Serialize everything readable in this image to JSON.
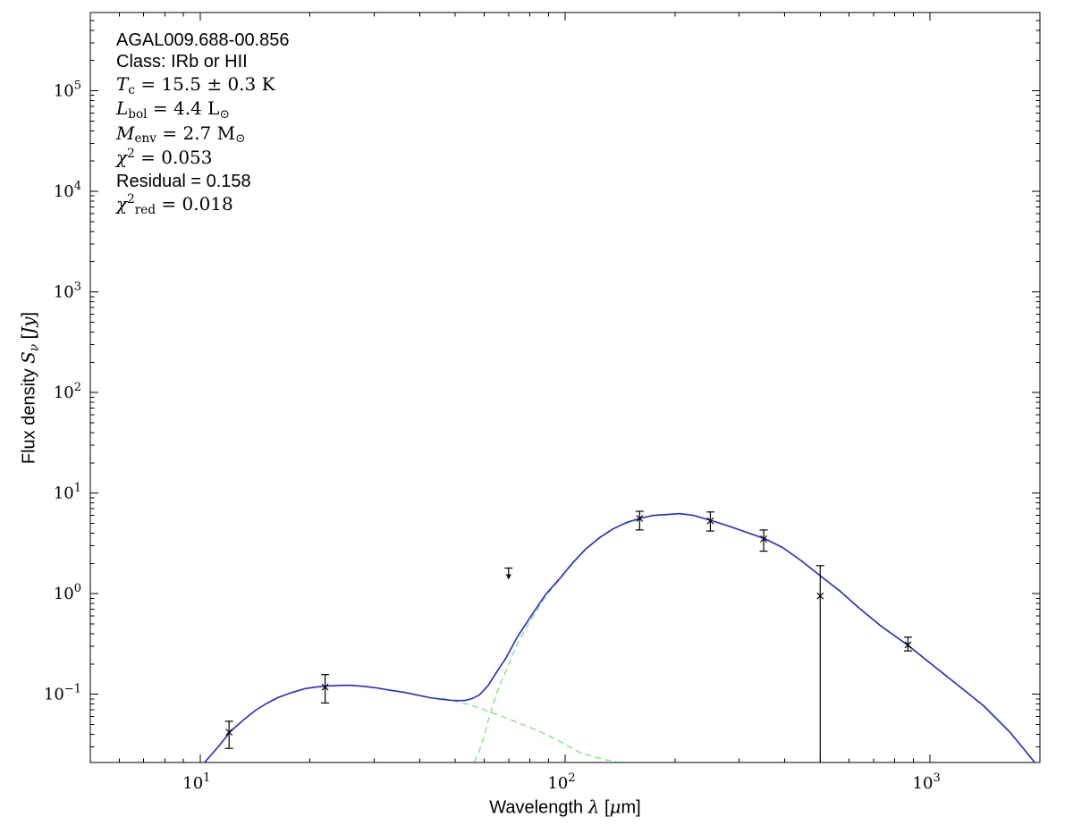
{
  "figure": {
    "background": "#ffffff",
    "frame_color": "#000000",
    "text_color": "#000000"
  },
  "chart_data": {
    "type": "line",
    "title": "",
    "x_scale": "log",
    "y_scale": "log",
    "xlim": [
      5.0,
      2000
    ],
    "ylim": [
      0.021,
      600000
    ],
    "grid": "off",
    "legend": "none",
    "x_ticks": {
      "values": [
        10,
        100,
        1000
      ],
      "exponents": [
        "1",
        "2",
        "3"
      ]
    },
    "y_ticks": {
      "values": [
        100000,
        10000,
        1000,
        100,
        10,
        1,
        0.1
      ],
      "exponents": [
        "5",
        "4",
        "3",
        "2",
        "1",
        "0",
        "−1"
      ]
    },
    "xlabel_segments": [
      {
        "t": "Wavelength ",
        "f": "sans"
      },
      {
        "t": "λ",
        "f": "it"
      },
      {
        "t": " [",
        "f": "sans"
      },
      {
        "t": "μ",
        "f": "it"
      },
      {
        "t": "m]",
        "f": "sans"
      }
    ],
    "ylabel_segments": [
      {
        "t": "Flux density ",
        "f": "sans"
      },
      {
        "t": "S",
        "f": "it"
      },
      {
        "t": "ν",
        "f": "it",
        "pos": "sub"
      },
      {
        "t": " [",
        "f": "sans"
      },
      {
        "t": "Jy",
        "f": "it"
      },
      {
        "t": "]",
        "f": "sans"
      }
    ],
    "series": [
      {
        "name": "model-total",
        "color": "#2828d4",
        "style": "solid",
        "width": 1.6,
        "points": [
          [
            10.3,
            0.0212
          ],
          [
            11.2,
            0.03
          ],
          [
            12.1,
            0.0425
          ],
          [
            13.1,
            0.055
          ],
          [
            14.2,
            0.0695
          ],
          [
            15.2,
            0.081
          ],
          [
            16.3,
            0.0925
          ],
          [
            17.8,
            0.104
          ],
          [
            19.4,
            0.114
          ],
          [
            20.8,
            0.118
          ],
          [
            22.3,
            0.121
          ],
          [
            24,
            0.1225
          ],
          [
            25.7,
            0.123
          ],
          [
            28,
            0.12
          ],
          [
            30.4,
            0.116
          ],
          [
            33,
            0.11
          ],
          [
            36,
            0.105
          ],
          [
            39,
            0.099
          ],
          [
            42.6,
            0.0925
          ],
          [
            45.7,
            0.0895
          ],
          [
            49,
            0.087
          ],
          [
            51,
            0.0865
          ],
          [
            53.3,
            0.0869
          ],
          [
            55.7,
            0.091
          ],
          [
            58.1,
            0.098
          ],
          [
            61.4,
            0.121
          ],
          [
            65,
            0.167
          ],
          [
            68.7,
            0.227
          ],
          [
            74,
            0.372
          ],
          [
            80.5,
            0.594
          ],
          [
            88.6,
            0.991
          ],
          [
            96.4,
            1.4
          ],
          [
            104.9,
            2.03
          ],
          [
            114.2,
            2.81
          ],
          [
            124.2,
            3.6
          ],
          [
            135.2,
            4.41
          ],
          [
            147.1,
            5.09
          ],
          [
            161,
            5.64
          ],
          [
            174.2,
            6.0
          ],
          [
            189.5,
            6.12
          ],
          [
            206.4,
            6.25
          ],
          [
            224.4,
            6.02
          ],
          [
            252.9,
            5.31
          ],
          [
            281.3,
            4.7
          ],
          [
            314.8,
            4.07
          ],
          [
            352.4,
            3.53
          ],
          [
            394.4,
            2.88
          ],
          [
            441.5,
            2.16
          ],
          [
            502.5,
            1.49
          ],
          [
            568.8,
            1.05
          ],
          [
            636.7,
            0.73
          ],
          [
            732.8,
            0.48
          ],
          [
            868.1,
            0.309
          ],
          [
            1000,
            0.205
          ],
          [
            1183,
            0.126
          ],
          [
            1402,
            0.077
          ],
          [
            1660,
            0.0416
          ],
          [
            1932,
            0.0212
          ]
        ]
      },
      {
        "name": "warm-component",
        "color": "#7de57d",
        "style": "dashed",
        "width": 1.3,
        "points": [
          [
            46,
            0.091
          ],
          [
            50,
            0.0855
          ],
          [
            55.5,
            0.0775
          ],
          [
            61,
            0.0685
          ],
          [
            67,
            0.0605
          ],
          [
            74,
            0.0525
          ],
          [
            84,
            0.0437
          ],
          [
            97.5,
            0.0335
          ],
          [
            110,
            0.0263
          ],
          [
            125,
            0.023
          ],
          [
            138,
            0.0212
          ]
        ]
      },
      {
        "name": "cold-component",
        "color": "#7de57d",
        "style": "dashed",
        "width": 1.3,
        "points": [
          [
            56.3,
            0.0212
          ],
          [
            58.1,
            0.027
          ],
          [
            60,
            0.038
          ],
          [
            61.4,
            0.053
          ],
          [
            63,
            0.072
          ],
          [
            65,
            0.104
          ],
          [
            68.7,
            0.169
          ],
          [
            74,
            0.319
          ],
          [
            80.5,
            0.548
          ],
          [
            88.6,
            0.95
          ],
          [
            96.4,
            1.37
          ],
          [
            104.9,
            2.0
          ],
          [
            114.2,
            2.78
          ],
          [
            124.2,
            3.57
          ],
          [
            135.2,
            4.38
          ],
          [
            147.1,
            5.06
          ],
          [
            161,
            5.61
          ],
          [
            174.2,
            5.97
          ],
          [
            189.5,
            6.1
          ],
          [
            206.4,
            6.23
          ],
          [
            224.4,
            6.0
          ],
          [
            252.9,
            5.3
          ],
          [
            281.3,
            4.69
          ],
          [
            314.8,
            4.06
          ],
          [
            352.4,
            3.52
          ],
          [
            394.4,
            2.87
          ],
          [
            441.5,
            2.15
          ],
          [
            502.5,
            1.48
          ],
          [
            568.8,
            1.04
          ],
          [
            636.7,
            0.725
          ],
          [
            732.8,
            0.475
          ],
          [
            868.1,
            0.306
          ],
          [
            1000,
            0.203
          ],
          [
            1183,
            0.125
          ],
          [
            1402,
            0.076
          ],
          [
            1660,
            0.0413
          ],
          [
            1932,
            0.021
          ]
        ]
      }
    ],
    "data_points": [
      {
        "wavelength_um": 12,
        "flux_jy": 0.042,
        "err_up": 0.054,
        "err_down": 0.029
      },
      {
        "wavelength_um": 22,
        "flux_jy": 0.118,
        "err_up": 0.157,
        "err_down": 0.082
      },
      {
        "wavelength_um": 160,
        "flux_jy": 5.6,
        "err_up": 6.6,
        "err_down": 4.3
      },
      {
        "wavelength_um": 250,
        "flux_jy": 5.3,
        "err_up": 6.5,
        "err_down": 4.2
      },
      {
        "wavelength_um": 350,
        "flux_jy": 3.5,
        "err_up": 4.3,
        "err_down": 2.65
      },
      {
        "wavelength_um": 500,
        "flux_jy": 0.95,
        "err_up": 1.9,
        "err_down": 0.021,
        "err_down_to_axis": true
      },
      {
        "wavelength_um": 870,
        "flux_jy": 0.31,
        "err_up": 0.37,
        "err_down": 0.27
      }
    ],
    "upper_limits": [
      {
        "wavelength_um": 70,
        "flux_jy": 1.8
      }
    ],
    "marker": "x",
    "marker_color": "#000000"
  },
  "annotation": {
    "lines": [
      {
        "name": "source-name",
        "segments": [
          {
            "t": "AGAL009.688-00.856",
            "f": "sans"
          }
        ]
      },
      {
        "name": "class-line",
        "segments": [
          {
            "t": "Class: IRb or HII",
            "f": "sans"
          }
        ]
      },
      {
        "name": "temperature-line",
        "segments": [
          {
            "t": "T",
            "f": "it"
          },
          {
            "t": "c",
            "f": "rm",
            "pos": "sub"
          },
          {
            "t": " = 15.5 ± 0.3 K",
            "f": "rm"
          }
        ]
      },
      {
        "name": "luminosity-line",
        "segments": [
          {
            "t": "L",
            "f": "it"
          },
          {
            "t": "bol",
            "f": "rm",
            "pos": "sub"
          },
          {
            "t": " = 4.4 L",
            "f": "rm"
          },
          {
            "t": "⊙",
            "f": "rm",
            "pos": "sub"
          }
        ]
      },
      {
        "name": "mass-line",
        "segments": [
          {
            "t": "M",
            "f": "it"
          },
          {
            "t": "env",
            "f": "rm",
            "pos": "sub"
          },
          {
            "t": " = 2.7 M",
            "f": "rm"
          },
          {
            "t": "⊙",
            "f": "rm",
            "pos": "sub"
          }
        ]
      },
      {
        "name": "chi2-line",
        "segments": [
          {
            "t": "χ",
            "f": "it"
          },
          {
            "t": "2",
            "f": "rm",
            "pos": "sup"
          },
          {
            "t": " = 0.053",
            "f": "rm"
          }
        ]
      },
      {
        "name": "residual-line",
        "segments": [
          {
            "t": "Residual = 0.158",
            "f": "sans"
          }
        ]
      },
      {
        "name": "chi2red-line",
        "segments": [
          {
            "t": "χ",
            "f": "it"
          },
          {
            "t": "2",
            "f": "rm",
            "pos": "sup"
          },
          {
            "t": "red",
            "f": "rm",
            "pos": "sub"
          },
          {
            "t": " = 0.018",
            "f": "rm"
          }
        ]
      }
    ]
  }
}
